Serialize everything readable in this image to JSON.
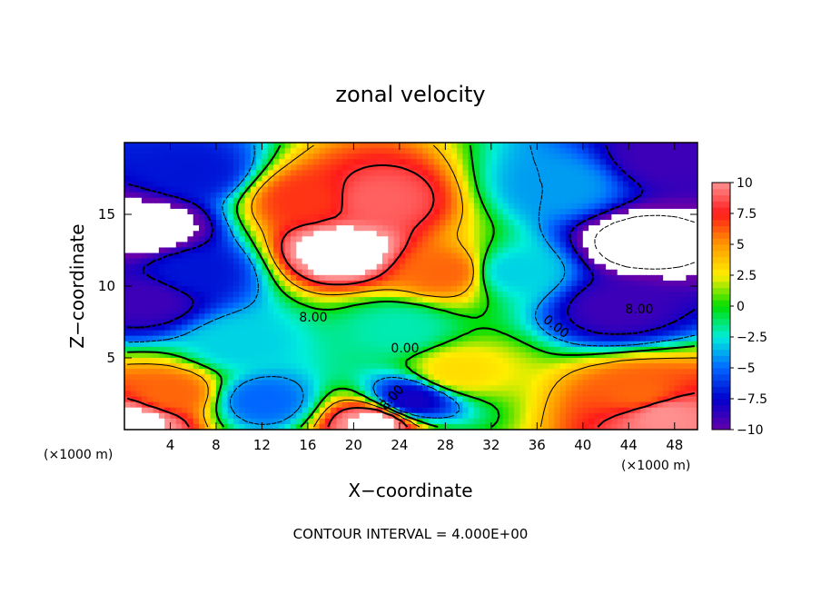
{
  "chart_data": {
    "type": "heatmap",
    "title": "zonal velocity",
    "xlabel": "X−coordinate",
    "ylabel": "Z−coordinate",
    "x_unit_label": "(×1000 m)",
    "x_unit_label_right": "(×1000 m)",
    "xlim": [
      0,
      50
    ],
    "ylim": [
      0,
      20
    ],
    "x_ticks": [
      "4",
      "8",
      "12",
      "16",
      "20",
      "24",
      "28",
      "32",
      "36",
      "40",
      "44",
      "48"
    ],
    "y_ticks": [
      "5",
      "10",
      "15"
    ],
    "colorbar": {
      "range": [
        -10,
        10
      ],
      "tick_labels": [
        "10",
        "7.5",
        "5",
        "2.5",
        "0",
        "−2.5",
        "−5",
        "−7.5",
        "−10"
      ],
      "tick_values": [
        10,
        7.5,
        5,
        2.5,
        0,
        -2.5,
        -5,
        -7.5,
        -10
      ]
    },
    "contour_labels": [
      "8.00",
      "0.00",
      "0.00",
      "8.00",
      "8.00"
    ],
    "contour_interval_note": "CONTOUR INTERVAL = 4.000E+00",
    "field_features": [
      {
        "x": 19,
        "z": 12.5,
        "value": 12
      },
      {
        "x": 22,
        "z": 16,
        "value": 9
      },
      {
        "x": 28,
        "z": 11,
        "value": 6
      },
      {
        "x": 16,
        "z": 16,
        "value": 7
      },
      {
        "x": 2,
        "z": 14,
        "value": -12
      },
      {
        "x": 45,
        "z": 13,
        "value": -13
      },
      {
        "x": 47,
        "z": 19,
        "value": -9
      },
      {
        "x": 43,
        "z": 8.5,
        "value": -9
      },
      {
        "x": 2,
        "z": 9,
        "value": -9
      },
      {
        "x": 6,
        "z": 11,
        "value": -7
      },
      {
        "x": 6,
        "z": 18,
        "value": -7
      },
      {
        "x": 29,
        "z": 4,
        "value": 3
      },
      {
        "x": 4,
        "z": 2.5,
        "value": 6
      },
      {
        "x": 45,
        "z": 2.5,
        "value": 6
      },
      {
        "x": 47,
        "z": 1,
        "value": 10
      },
      {
        "x": 1,
        "z": 0.5,
        "value": 11
      },
      {
        "x": 25,
        "z": 2,
        "value": -8
      },
      {
        "x": 22,
        "z": 0.5,
        "value": 11
      },
      {
        "x": 34,
        "z": 11,
        "value": -3
      },
      {
        "x": 38,
        "z": 17,
        "value": -4
      },
      {
        "x": 10,
        "z": 6,
        "value": -3
      },
      {
        "x": 24,
        "z": 7,
        "value": -2
      },
      {
        "x": 12,
        "z": 2,
        "value": -5
      }
    ],
    "colors": {
      "white": "#ffffff",
      "pink": "#ff9090",
      "red": "#ff1a1a",
      "orange": "#ff9900",
      "yellow": "#ffee00",
      "green": "#00dd00",
      "cyan": "#00eedd",
      "blue": "#0066ff",
      "darkblue": "#0000cc",
      "purple": "#6600aa"
    }
  }
}
